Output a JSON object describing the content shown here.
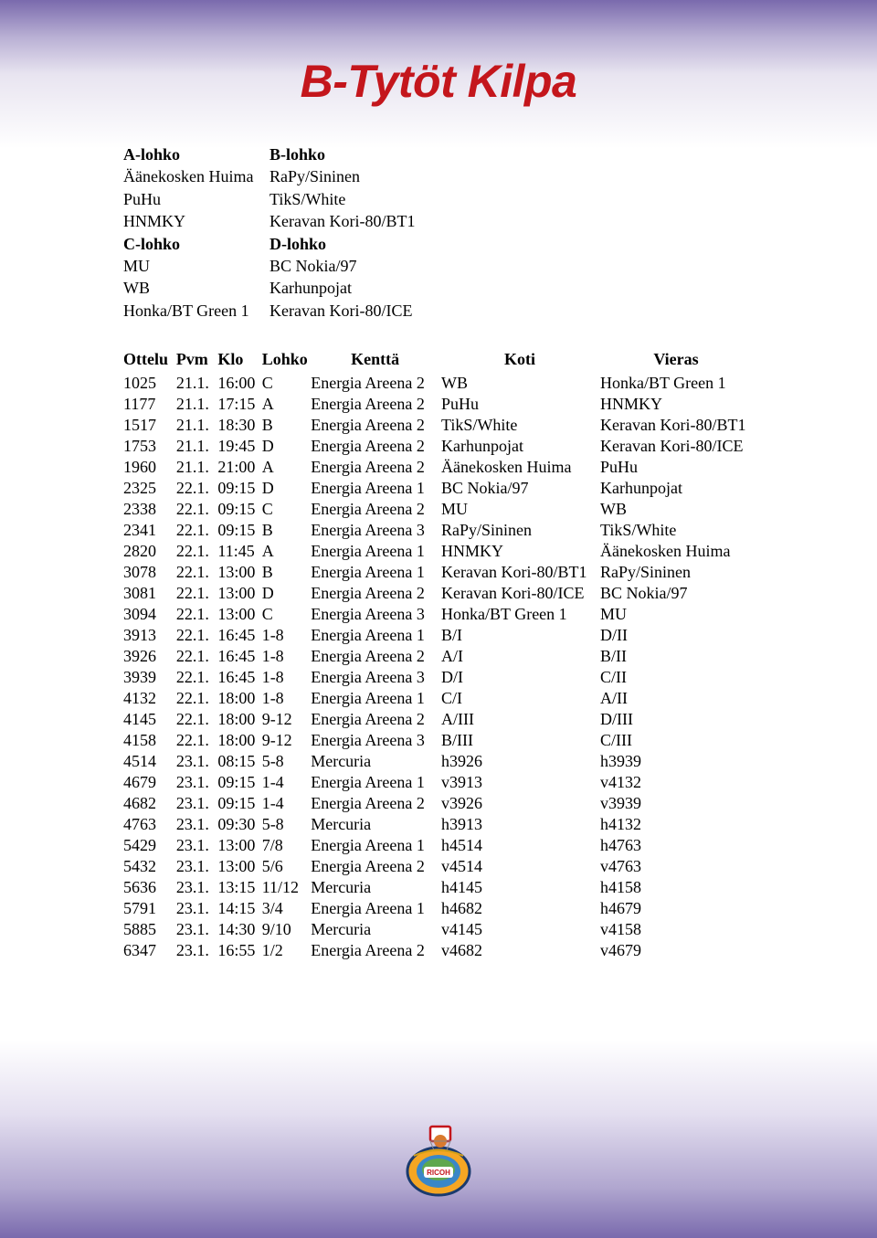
{
  "title": "B-Tytöt Kilpa",
  "title_color": "#c4161c",
  "title_fontsize": 50,
  "body_fontsize": 18,
  "background_gradient": [
    "#7a6aad",
    "#ffffff",
    "#7a6aad"
  ],
  "groups": {
    "a_header": "A-lohko",
    "b_header": "B-lohko",
    "c_header": "C-lohko",
    "d_header": "D-lohko",
    "a_teams": [
      "Äänekosken Huima",
      "PuHu",
      "HNMKY"
    ],
    "b_teams": [
      "RaPy/Sininen",
      "TikS/White",
      "Keravan Kori-80/BT1"
    ],
    "c_teams": [
      "MU",
      "WB",
      "Honka/BT Green 1"
    ],
    "d_teams": [
      "BC Nokia/97",
      "Karhunpojat",
      "Keravan Kori-80/ICE"
    ]
  },
  "schedule_headers": {
    "ottelu": "Ottelu",
    "pvm": "Pvm",
    "klo": "Klo",
    "lohko": "Lohko",
    "kentta": "Kenttä",
    "koti": "Koti",
    "vieras": "Vieras"
  },
  "schedule": [
    {
      "ottelu": "1025",
      "pvm": "21.1.",
      "klo": "16:00",
      "lohko": "C",
      "kentta": "Energia Areena 2",
      "koti": "WB",
      "vieras": "Honka/BT Green 1"
    },
    {
      "ottelu": "1177",
      "pvm": "21.1.",
      "klo": "17:15",
      "lohko": "A",
      "kentta": "Energia Areena 2",
      "koti": "PuHu",
      "vieras": "HNMKY"
    },
    {
      "ottelu": "1517",
      "pvm": "21.1.",
      "klo": "18:30",
      "lohko": "B",
      "kentta": "Energia Areena 2",
      "koti": "TikS/White",
      "vieras": "Keravan Kori-80/BT1"
    },
    {
      "ottelu": "1753",
      "pvm": "21.1.",
      "klo": "19:45",
      "lohko": "D",
      "kentta": "Energia Areena 2",
      "koti": "Karhunpojat",
      "vieras": "Keravan Kori-80/ICE"
    },
    {
      "ottelu": "1960",
      "pvm": "21.1.",
      "klo": "21:00",
      "lohko": "A",
      "kentta": "Energia Areena 2",
      "koti": "Äänekosken Huima",
      "vieras": "PuHu"
    },
    {
      "ottelu": "2325",
      "pvm": "22.1.",
      "klo": "09:15",
      "lohko": "D",
      "kentta": "Energia Areena 1",
      "koti": "BC Nokia/97",
      "vieras": "Karhunpojat"
    },
    {
      "ottelu": "2338",
      "pvm": "22.1.",
      "klo": "09:15",
      "lohko": "C",
      "kentta": "Energia Areena 2",
      "koti": "MU",
      "vieras": "WB"
    },
    {
      "ottelu": "2341",
      "pvm": "22.1.",
      "klo": "09:15",
      "lohko": "B",
      "kentta": "Energia Areena 3",
      "koti": "RaPy/Sininen",
      "vieras": "TikS/White"
    },
    {
      "ottelu": "2820",
      "pvm": "22.1.",
      "klo": "11:45",
      "lohko": "A",
      "kentta": "Energia Areena 1",
      "koti": "HNMKY",
      "vieras": "Äänekosken Huima"
    },
    {
      "ottelu": "3078",
      "pvm": "22.1.",
      "klo": "13:00",
      "lohko": "B",
      "kentta": "Energia Areena 1",
      "koti": "Keravan Kori-80/BT1",
      "vieras": "RaPy/Sininen"
    },
    {
      "ottelu": "3081",
      "pvm": "22.1.",
      "klo": "13:00",
      "lohko": "D",
      "kentta": "Energia Areena 2",
      "koti": "Keravan Kori-80/ICE",
      "vieras": "BC Nokia/97"
    },
    {
      "ottelu": "3094",
      "pvm": "22.1.",
      "klo": "13:00",
      "lohko": "C",
      "kentta": "Energia Areena 3",
      "koti": "Honka/BT Green 1",
      "vieras": "MU"
    },
    {
      "ottelu": "3913",
      "pvm": "22.1.",
      "klo": "16:45",
      "lohko": "1-8",
      "kentta": "Energia Areena 1",
      "koti": "B/I",
      "vieras": "D/II"
    },
    {
      "ottelu": "3926",
      "pvm": "22.1.",
      "klo": "16:45",
      "lohko": "1-8",
      "kentta": "Energia Areena 2",
      "koti": "A/I",
      "vieras": "B/II"
    },
    {
      "ottelu": "3939",
      "pvm": "22.1.",
      "klo": "16:45",
      "lohko": "1-8",
      "kentta": "Energia Areena 3",
      "koti": "D/I",
      "vieras": "C/II"
    },
    {
      "ottelu": "4132",
      "pvm": "22.1.",
      "klo": "18:00",
      "lohko": "1-8",
      "kentta": "Energia Areena 1",
      "koti": "C/I",
      "vieras": "A/II"
    },
    {
      "ottelu": "4145",
      "pvm": "22.1.",
      "klo": "18:00",
      "lohko": "9-12",
      "kentta": "Energia Areena 2",
      "koti": "A/III",
      "vieras": "D/III"
    },
    {
      "ottelu": "4158",
      "pvm": "22.1.",
      "klo": "18:00",
      "lohko": "9-12",
      "kentta": "Energia Areena 3",
      "koti": "B/III",
      "vieras": "C/III"
    },
    {
      "ottelu": "4514",
      "pvm": "23.1.",
      "klo": "08:15",
      "lohko": "5-8",
      "kentta": "Mercuria",
      "koti": "h3926",
      "vieras": "h3939"
    },
    {
      "ottelu": "4679",
      "pvm": "23.1.",
      "klo": "09:15",
      "lohko": "1-4",
      "kentta": "Energia Areena 1",
      "koti": "v3913",
      "vieras": "v4132"
    },
    {
      "ottelu": "4682",
      "pvm": "23.1.",
      "klo": "09:15",
      "lohko": "1-4",
      "kentta": "Energia Areena 2",
      "koti": "v3926",
      "vieras": "v3939"
    },
    {
      "ottelu": "4763",
      "pvm": "23.1.",
      "klo": "09:30",
      "lohko": "5-8",
      "kentta": "Mercuria",
      "koti": "h3913",
      "vieras": "h4132"
    },
    {
      "ottelu": "5429",
      "pvm": "23.1.",
      "klo": "13:00",
      "lohko": "7/8",
      "kentta": "Energia Areena 1",
      "koti": "h4514",
      "vieras": "h4763"
    },
    {
      "ottelu": "5432",
      "pvm": "23.1.",
      "klo": "13:00",
      "lohko": "5/6",
      "kentta": "Energia Areena 2",
      "koti": "v4514",
      "vieras": "v4763"
    },
    {
      "ottelu": "5636",
      "pvm": "23.1.",
      "klo": "13:15",
      "lohko": "11/12",
      "kentta": "Mercuria",
      "koti": "h4145",
      "vieras": "h4158"
    },
    {
      "ottelu": "5791",
      "pvm": "23.1.",
      "klo": "14:15",
      "lohko": "3/4",
      "kentta": "Energia Areena 1",
      "koti": "h4682",
      "vieras": "h4679"
    },
    {
      "ottelu": "5885",
      "pvm": "23.1.",
      "klo": "14:30",
      "lohko": "9/10",
      "kentta": "Mercuria",
      "koti": "v4145",
      "vieras": "v4158"
    },
    {
      "ottelu": "6347",
      "pvm": "23.1.",
      "klo": "16:55",
      "lohko": "1/2",
      "kentta": "Energia Areena 2",
      "koti": "v4682",
      "vieras": "v4679"
    }
  ],
  "logo_label": "RICOH"
}
